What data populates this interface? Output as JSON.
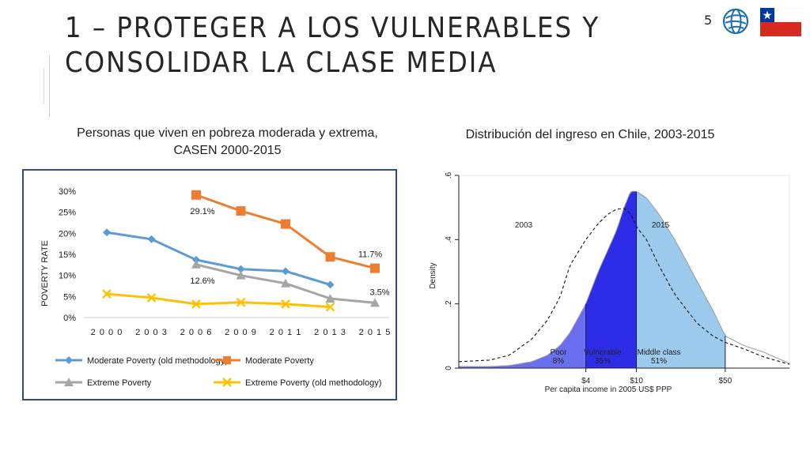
{
  "slide": {
    "title": "1 – PROTEGER A LOS VULNERABLES Y CONSOLIDAR LA CLASE MEDIA",
    "page_number": "5",
    "caption_left": "Personas que viven en pobreza moderada y extrema, CASEN 2000-2015",
    "caption_right": "Distribución del ingreso en Chile, 2003-2015",
    "logo_icon": "world-bank-globe-icon",
    "flag_icon": "chile-flag-icon",
    "colors": {
      "title": "#262626",
      "chart_border": "#2f4f7a"
    }
  },
  "chart_data": [
    {
      "type": "line",
      "ylabel": "POVERTY RATE",
      "xlabel": "",
      "categories": [
        "2000",
        "2003",
        "2006",
        "2009",
        "2011",
        "2013",
        "2015"
      ],
      "ylim": [
        0,
        30
      ],
      "yticks": [
        0,
        5,
        10,
        15,
        20,
        25,
        30
      ],
      "ytick_labels": [
        "0%",
        "5%",
        "10%",
        "15%",
        "20%",
        "25%",
        "30%"
      ],
      "legend_position": "bottom",
      "series": [
        {
          "name": "Moderate Poverty (old methodology)",
          "color": "#5b9bd5",
          "marker": "diamond",
          "values": [
            20.2,
            18.6,
            13.7,
            11.5,
            11.0,
            7.8,
            null
          ]
        },
        {
          "name": "Moderate Poverty",
          "color": "#ed7d31",
          "marker": "square",
          "values": [
            null,
            null,
            29.1,
            25.3,
            22.2,
            14.4,
            11.7
          ]
        },
        {
          "name": "Extreme Poverty",
          "color": "#a5a5a5",
          "marker": "triangle",
          "values": [
            null,
            null,
            12.6,
            10.0,
            8.1,
            4.5,
            3.5
          ]
        },
        {
          "name": "Extreme Poverty (old methodology)",
          "color": "#ffc000",
          "marker": "x",
          "values": [
            5.6,
            4.7,
            3.2,
            3.6,
            3.2,
            2.5,
            null
          ]
        }
      ],
      "annotations": [
        {
          "text": "29.1%",
          "series": "Moderate Poverty",
          "category": "2006"
        },
        {
          "text": "11.7%",
          "series": "Moderate Poverty",
          "category": "2015"
        },
        {
          "text": "12.6%",
          "series": "Extreme Poverty",
          "category": "2006"
        },
        {
          "text": "3.5%",
          "series": "Extreme Poverty",
          "category": "2015"
        }
      ]
    },
    {
      "type": "area",
      "title": "",
      "xlabel": "Per capita income in 2005 US$ PPP",
      "ylabel": "Density",
      "x_scale": "log",
      "xlim": [
        0.4,
        160
      ],
      "ylim": [
        0,
        0.6
      ],
      "xticks": [
        {
          "value": 4,
          "label": "$4"
        },
        {
          "value": 10,
          "label": "$10"
        },
        {
          "value": 50,
          "label": "$50"
        }
      ],
      "yticks": [
        {
          "value": 0,
          "label": "0"
        },
        {
          "value": 0.2,
          "label": ".2"
        },
        {
          "value": 0.4,
          "label": ".4"
        },
        {
          "value": 0.6,
          "label": ".6"
        }
      ],
      "series": [
        {
          "name": "2003",
          "style": "dashed",
          "x": [
            0.4,
            0.7,
            1,
            1.5,
            2,
            2.5,
            3,
            4,
            5,
            6,
            7,
            8,
            9,
            10,
            12,
            15,
            20,
            25,
            30,
            40,
            50,
            70,
            100,
            130,
            160
          ],
          "y": [
            0.02,
            0.025,
            0.04,
            0.09,
            0.15,
            0.22,
            0.32,
            0.4,
            0.45,
            0.48,
            0.495,
            0.497,
            0.48,
            0.44,
            0.4,
            0.32,
            0.23,
            0.18,
            0.14,
            0.1,
            0.08,
            0.06,
            0.035,
            0.022,
            0.012
          ]
        },
        {
          "name": "2015",
          "style": "filled",
          "x": [
            0.4,
            0.7,
            1,
            1.5,
            2,
            2.5,
            3,
            4,
            5,
            6,
            7,
            8,
            9,
            10,
            12,
            15,
            20,
            25,
            30,
            40,
            50,
            70,
            100,
            130,
            160
          ],
          "y": [
            0.005,
            0.005,
            0.008,
            0.02,
            0.04,
            0.07,
            0.11,
            0.2,
            0.3,
            0.37,
            0.43,
            0.5,
            0.55,
            0.55,
            0.53,
            0.48,
            0.4,
            0.33,
            0.27,
            0.18,
            0.1,
            0.07,
            0.05,
            0.03,
            0.015
          ]
        }
      ],
      "regions": [
        {
          "name": "Poor",
          "share": "8%",
          "from": 0.4,
          "to": 4,
          "color": "#6a6ff0"
        },
        {
          "name": "Vulnerable",
          "share": "35%",
          "from": 4,
          "to": 10,
          "color": "#2d2de8"
        },
        {
          "name": "Middle class",
          "share": "51%",
          "from": 10,
          "to": 50,
          "color": "#9ccaec"
        },
        {
          "name": "",
          "share": "",
          "from": 50,
          "to": 160,
          "color": "#ffffff"
        }
      ],
      "series_labels": [
        "2003",
        "2015"
      ]
    }
  ]
}
